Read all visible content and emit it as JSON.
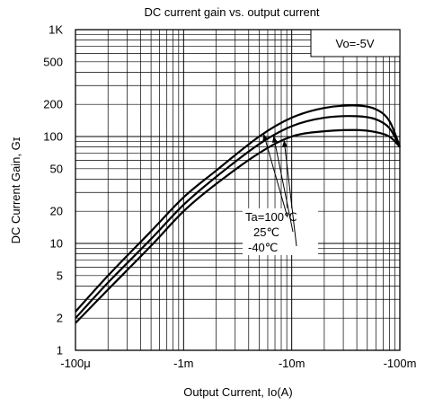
{
  "chart_data": {
    "type": "line",
    "title": "DC current gain vs. output current",
    "xlabel": "Output Current, Io(A)",
    "ylabel": "DC Current Gain, Gɪ",
    "x_scale": "log",
    "y_scale": "log",
    "xlim": [
      0.0001,
      0.1
    ],
    "ylim": [
      1,
      1000
    ],
    "grid": true,
    "x_ticks": [
      {
        "value": 0.0001,
        "label": "-100μ"
      },
      {
        "value": 0.001,
        "label": "-1m"
      },
      {
        "value": 0.01,
        "label": "-10m"
      },
      {
        "value": 0.1,
        "label": "-100m"
      }
    ],
    "y_ticks": [
      {
        "value": 1,
        "label": "1"
      },
      {
        "value": 2,
        "label": "2"
      },
      {
        "value": 5,
        "label": "5"
      },
      {
        "value": 10,
        "label": "10"
      },
      {
        "value": 20,
        "label": "20"
      },
      {
        "value": 50,
        "label": "50"
      },
      {
        "value": 100,
        "label": "100"
      },
      {
        "value": 200,
        "label": "200"
      },
      {
        "value": 500,
        "label": "500"
      },
      {
        "value": 1000,
        "label": "1K"
      }
    ],
    "condition_label": "Vo=-5V",
    "series": [
      {
        "name": "Ta=100℃",
        "x": [
          0.0001,
          0.0002,
          0.0005,
          0.001,
          0.002,
          0.005,
          0.01,
          0.02,
          0.04,
          0.06,
          0.08,
          0.1
        ],
        "y": [
          2.3,
          5.0,
          13,
          27,
          48,
          100,
          150,
          185,
          195,
          180,
          140,
          80
        ]
      },
      {
        "name": "25℃",
        "x": [
          0.0001,
          0.0002,
          0.0005,
          0.001,
          0.002,
          0.005,
          0.01,
          0.02,
          0.04,
          0.06,
          0.08,
          0.1
        ],
        "y": [
          2.0,
          4.3,
          11,
          23,
          42,
          85,
          125,
          150,
          155,
          145,
          120,
          80
        ]
      },
      {
        "name": "-40℃",
        "x": [
          0.0001,
          0.0002,
          0.0005,
          0.001,
          0.002,
          0.005,
          0.01,
          0.02,
          0.04,
          0.06,
          0.08,
          0.1
        ],
        "y": [
          1.8,
          3.7,
          9.5,
          20,
          36,
          70,
          100,
          112,
          115,
          110,
          100,
          80
        ]
      }
    ],
    "annotation": {
      "lines": [
        "Ta=100℃",
        "25℃",
        "-40℃"
      ]
    }
  }
}
